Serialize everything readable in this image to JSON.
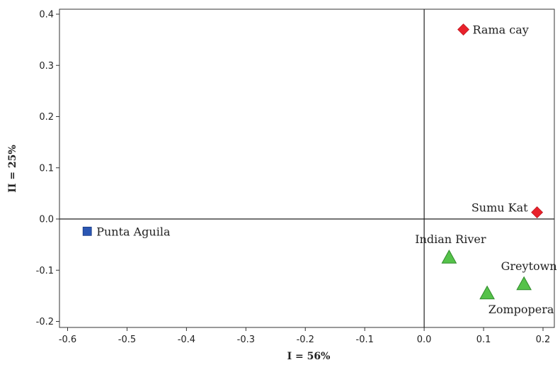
{
  "chart_data": {
    "type": "scatter",
    "title": "",
    "xlabel": "I = 56%",
    "ylabel": "II = 25%",
    "xlim": [
      -0.62,
      0.24
    ],
    "ylim": [
      -0.21,
      0.41
    ],
    "xticks": [
      -0.6,
      -0.5,
      -0.4,
      -0.3,
      -0.2,
      -0.1,
      0.0,
      0.1,
      0.2
    ],
    "yticks": [
      -0.2,
      -0.1,
      0.0,
      0.1,
      0.2,
      0.3,
      0.4
    ],
    "xtick_labels": [
      "-0.6",
      "-0.5",
      "-0.4",
      "-0.3",
      "-0.2",
      "-0.1",
      "0.0",
      "0.1",
      "0.2"
    ],
    "ytick_labels": [
      "-0.2",
      "-0.1",
      "0.0",
      "0.1",
      "0.2",
      "0.3",
      "0.4"
    ],
    "grid": false,
    "reference_lines": {
      "x": 0.0,
      "y": 0.0
    },
    "points": [
      {
        "label": "Rama cay",
        "x": 0.066,
        "y": 0.37,
        "marker": "diamond",
        "color": "#e8212b",
        "label_pos": "right"
      },
      {
        "label": "Sumu Kat",
        "x": 0.19,
        "y": 0.013,
        "marker": "diamond",
        "color": "#e8212b",
        "label_pos": "left"
      },
      {
        "label": "Punta Aguila",
        "x": -0.567,
        "y": -0.024,
        "marker": "square",
        "color": "#2a56b3",
        "label_pos": "right"
      },
      {
        "label": "Indian River",
        "x": 0.042,
        "y": -0.075,
        "marker": "triangle",
        "color": "#55c24a",
        "label_pos": "above"
      },
      {
        "label": "Greytown",
        "x": 0.168,
        "y": -0.127,
        "marker": "triangle",
        "color": "#55c24a",
        "label_pos": "above-right"
      },
      {
        "label": "Zompopera",
        "x": 0.106,
        "y": -0.145,
        "marker": "triangle",
        "color": "#55c24a",
        "label_pos": "below-right"
      }
    ]
  }
}
